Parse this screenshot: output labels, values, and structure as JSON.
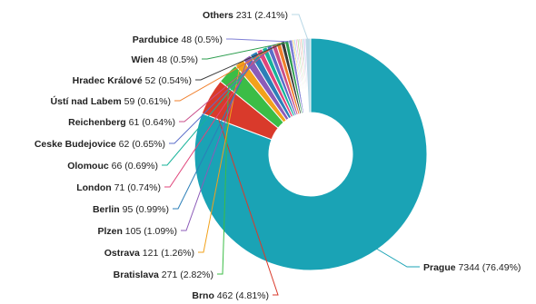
{
  "chart_data": {
    "type": "pie",
    "title": "",
    "slices": [
      {
        "label": "Prague",
        "value": 7344,
        "pct": "76.49%",
        "color": "#1aa3b5",
        "key": "prague"
      },
      {
        "label": "Brno",
        "value": 462,
        "pct": "4.81%",
        "color": "#d93a2b",
        "key": "brno"
      },
      {
        "label": "Bratislava",
        "value": 271,
        "pct": "2.82%",
        "color": "#3bbd46",
        "key": "bratislava"
      },
      {
        "label": "Ostrava",
        "value": 121,
        "pct": "1.26%",
        "color": "#f2a21b",
        "key": "ostrava"
      },
      {
        "label": "Plzen",
        "value": 105,
        "pct": "1.09%",
        "color": "#8c5bb8",
        "key": "plzen"
      },
      {
        "label": "Berlin",
        "value": 95,
        "pct": "0.99%",
        "color": "#2c7fb8",
        "key": "berlin"
      },
      {
        "label": "London",
        "value": 71,
        "pct": "0.74%",
        "color": "#e0457b",
        "key": "london"
      },
      {
        "label": "Olomouc",
        "value": 66,
        "pct": "0.69%",
        "color": "#17b39a",
        "key": "olomouc"
      },
      {
        "label": "Ceske Budejovice",
        "value": 62,
        "pct": "0.65%",
        "color": "#5b6ec9",
        "key": "ceske-budejovice"
      },
      {
        "label": "Reichenberg",
        "value": 61,
        "pct": "0.64%",
        "color": "#c94f8a",
        "key": "reichenberg"
      },
      {
        "label": "Ústí nad Labem",
        "value": 59,
        "pct": "0.61%",
        "color": "#f07f2b",
        "key": "usti-nad-labem"
      },
      {
        "label": "Hradec Králové",
        "value": 52,
        "pct": "0.54%",
        "color": "#3a3a3a",
        "key": "hradec-kralove"
      },
      {
        "label": "Wien",
        "value": 48,
        "pct": "0.5%",
        "color": "#2d9e4f",
        "key": "wien"
      },
      {
        "label": "Pardubice",
        "value": 48,
        "pct": "0.5%",
        "color": "#7f7fd5",
        "key": "pardubice"
      },
      {
        "label": "Others",
        "value": 231,
        "pct": "2.41%",
        "color": "#b8d8e6",
        "key": "others"
      }
    ],
    "hidden_small_slices": [
      {
        "color": "#e8c547"
      },
      {
        "color": "#9ad0f5"
      },
      {
        "color": "#f29bd4"
      },
      {
        "color": "#a3d977"
      },
      {
        "color": "#c7c7c7"
      },
      {
        "color": "#ffb3a7"
      },
      {
        "color": "#8fd3c8"
      },
      {
        "color": "#d0b3f0"
      }
    ],
    "donut": true
  }
}
